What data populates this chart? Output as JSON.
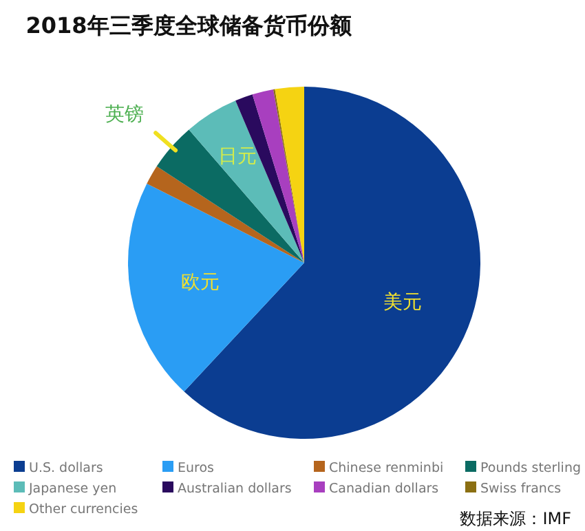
{
  "chart_data": {
    "type": "pie",
    "title": "2018年三季度全球储备货币份额",
    "categories": [
      "U.S. dollars",
      "Euros",
      "Chinese renminbi",
      "Pounds sterling",
      "Japanese yen",
      "Australian dollars",
      "Canadian dollars",
      "Swiss francs",
      "Other currencies"
    ],
    "values": [
      61.94,
      20.48,
      1.8,
      4.43,
      4.97,
      1.63,
      1.94,
      0.15,
      2.66
    ],
    "colors": [
      "#0b3d91",
      "#2a9df4",
      "#b5651d",
      "#0b6b63",
      "#5cbcb8",
      "#2a0a5e",
      "#a83fbf",
      "#8b6f12",
      "#f5d312"
    ],
    "legend": "bottom",
    "annotations": [
      {
        "text": "美元",
        "x": "U.S. dollars"
      },
      {
        "text": "欧元",
        "x": "Euros"
      },
      {
        "text": "日元",
        "x": "Japanese yen"
      },
      {
        "text": "英镑",
        "x": "Pounds sterling"
      },
      "数据来源：IMF"
    ]
  }
}
